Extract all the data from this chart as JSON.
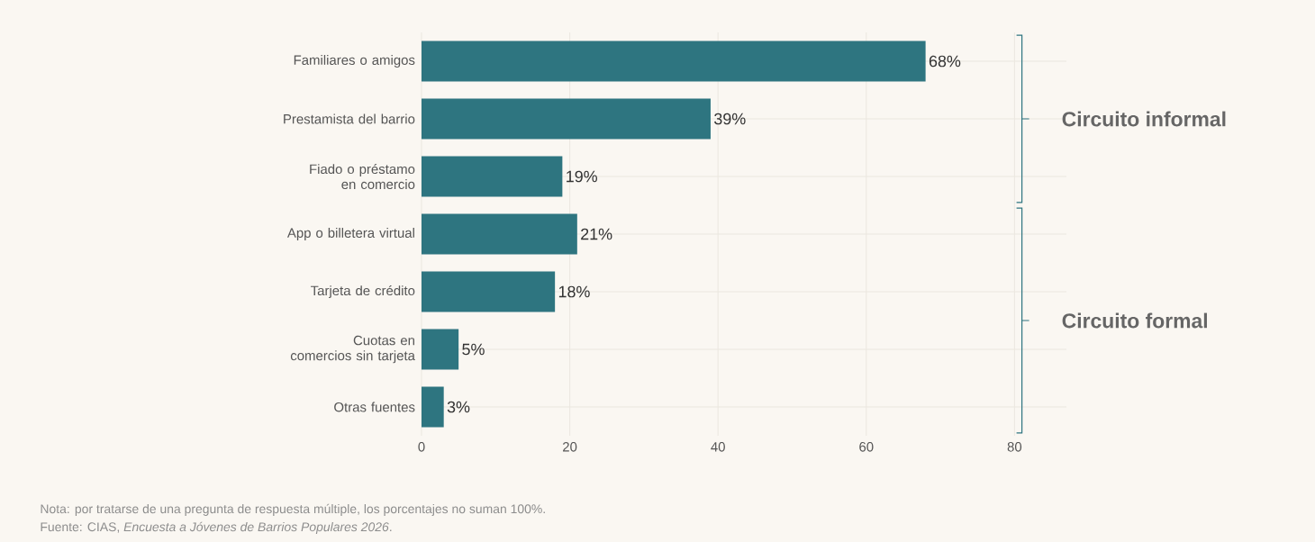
{
  "chart_data": {
    "type": "bar",
    "orientation": "horizontal",
    "categories": [
      "Familiares o amigos",
      "Prestamista del barrio",
      "Fiado o préstamo en comercio",
      "App o billetera virtual",
      "Tarjeta de crédito",
      "Cuotas en comercios sin tarjeta",
      "Otras fuentes"
    ],
    "values": [
      68,
      39,
      19,
      21,
      18,
      5,
      3
    ],
    "value_labels": [
      "68%",
      "39%",
      "19%",
      "21%",
      "18%",
      "5%",
      "3%"
    ],
    "color": "#2e7580",
    "xlim": [
      0,
      87
    ],
    "xticks": [
      0,
      20,
      40,
      60,
      80
    ],
    "grid": true,
    "annotations": [
      "Circuito informal",
      "Circuito formal",
      "Nota: por tratarse de una pregunta de respuesta múltiple, los porcentajes no suman 100%.",
      "Fuente: CIAS, *Encuesta a Jóvenes de Barrios Populares 2026*."
    ]
  }
}
